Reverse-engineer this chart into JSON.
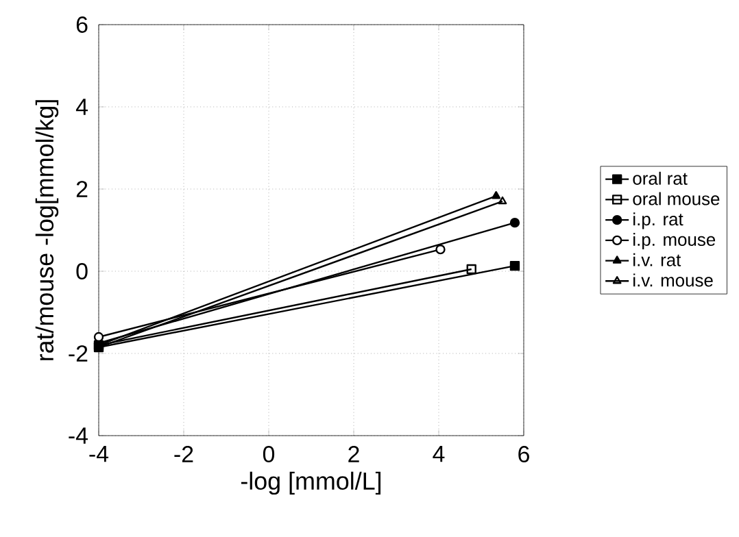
{
  "chart_data": {
    "type": "line",
    "xlabel": "-log [mmol/L]",
    "ylabel": "rat/mouse  -log[mmol/kg]",
    "series": [
      {
        "name": "oral rat",
        "color": "#000000",
        "marker": "square",
        "x": [
          -4,
          5.79
        ],
        "values": [
          -1.85,
          0.13
        ]
      },
      {
        "name": "oral mouse",
        "color": "#000000",
        "marker": "square",
        "x": [
          -4,
          4.77
        ],
        "values": [
          -1.8,
          0.05
        ]
      },
      {
        "name": "i.p. rat",
        "color": "#000000",
        "marker": "circle",
        "x": [
          -4,
          5.79
        ],
        "values": [
          -1.75,
          1.18
        ]
      },
      {
        "name": "i.p. mouse",
        "color": "#000000",
        "marker": "circle",
        "x": [
          -4,
          4.04
        ],
        "values": [
          -1.6,
          0.53
        ]
      },
      {
        "name": "i.v. rat",
        "color": "#000000",
        "marker": "triangle",
        "x": [
          -4,
          5.35
        ],
        "values": [
          -1.8,
          1.83
        ]
      },
      {
        "name": "i.v. mouse",
        "color": "#000000",
        "marker": "triangle",
        "x": [
          -4,
          5.5
        ],
        "values": [
          -1.85,
          1.7
        ]
      }
    ],
    "xlim": [
      -4,
      6
    ],
    "ylim": [
      -4,
      6
    ],
    "xticks": [
      -4,
      -2,
      0,
      2,
      4,
      6
    ],
    "yticks": [
      -4,
      -2,
      0,
      2,
      4,
      6
    ],
    "grid": true,
    "legend": "right",
    "line_style": "solid"
  }
}
